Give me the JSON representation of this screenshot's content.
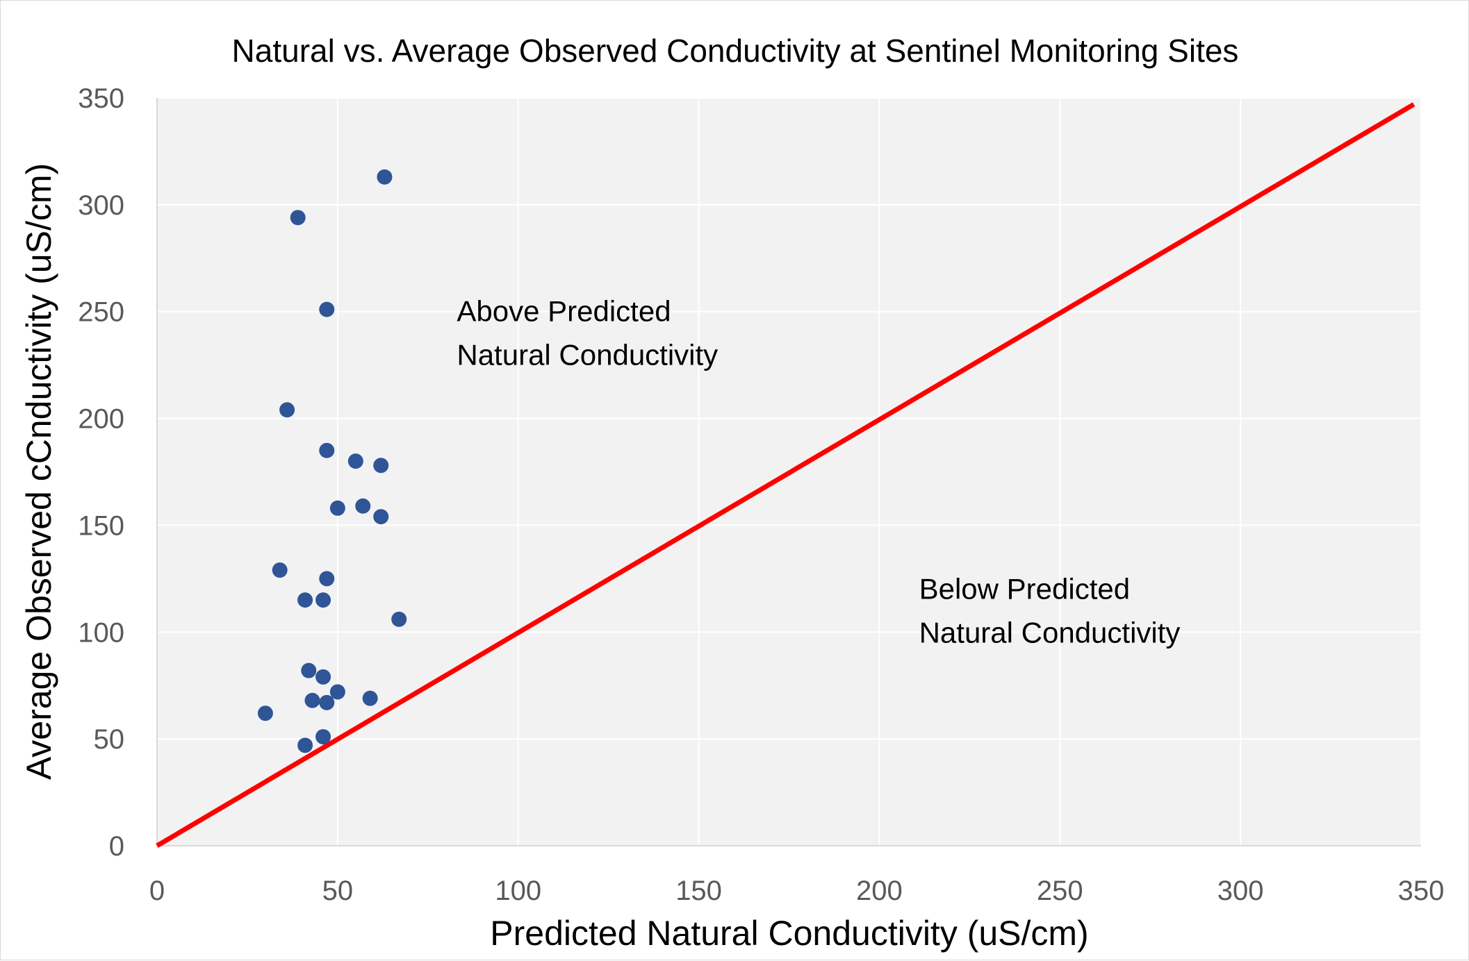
{
  "chart_data": {
    "type": "scatter",
    "title": "Natural vs. Average Observed Conductivity at Sentinel Monitoring Sites",
    "xlabel": "Predicted Natural Conductivity (uS/cm)",
    "ylabel": "Average Observed cCnductivity (uS/cm)",
    "xlim": [
      0,
      350
    ],
    "ylim": [
      0,
      350
    ],
    "x_ticks": [
      0,
      50,
      100,
      150,
      200,
      250,
      300,
      350
    ],
    "y_ticks": [
      0,
      50,
      100,
      150,
      200,
      250,
      300,
      350
    ],
    "grid": true,
    "plot_background": "#f2f2f2",
    "series": [
      {
        "marker_color": "#2f5597",
        "points": [
          {
            "x": 63,
            "y": 313
          },
          {
            "x": 39,
            "y": 294
          },
          {
            "x": 47,
            "y": 251
          },
          {
            "x": 36,
            "y": 204
          },
          {
            "x": 47,
            "y": 185
          },
          {
            "x": 55,
            "y": 180
          },
          {
            "x": 62,
            "y": 178
          },
          {
            "x": 50,
            "y": 158
          },
          {
            "x": 57,
            "y": 159
          },
          {
            "x": 62,
            "y": 154
          },
          {
            "x": 34,
            "y": 129
          },
          {
            "x": 47,
            "y": 125
          },
          {
            "x": 41,
            "y": 115
          },
          {
            "x": 46,
            "y": 115
          },
          {
            "x": 67,
            "y": 106
          },
          {
            "x": 42,
            "y": 82
          },
          {
            "x": 46,
            "y": 79
          },
          {
            "x": 50,
            "y": 72
          },
          {
            "x": 43,
            "y": 68
          },
          {
            "x": 47,
            "y": 67
          },
          {
            "x": 59,
            "y": 69
          },
          {
            "x": 30,
            "y": 62
          },
          {
            "x": 46,
            "y": 51
          },
          {
            "x": 41,
            "y": 47
          }
        ]
      }
    ],
    "reference_line": {
      "color": "#ff0000",
      "from": {
        "x": 0,
        "y": 0
      },
      "to": {
        "x": 348,
        "y": 347
      }
    },
    "annotations": [
      {
        "lines": [
          "Above Predicted",
          "Natural Conductivity"
        ],
        "x": 83,
        "y": 250
      },
      {
        "lines": [
          "Below Predicted",
          "Natural Conductivity"
        ],
        "x": 211,
        "y": 120
      }
    ]
  }
}
